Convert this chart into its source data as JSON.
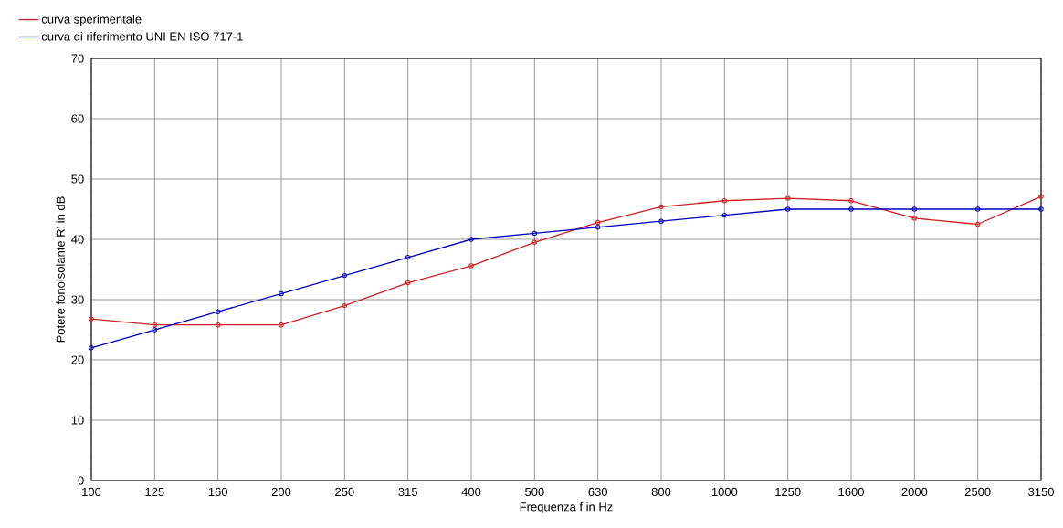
{
  "chart_data": {
    "type": "line",
    "xlabel": "Frequenza f in Hz",
    "ylabel": "Potere fonoisolante R' in dB",
    "categories": [
      "100",
      "125",
      "160",
      "200",
      "250",
      "315",
      "400",
      "500",
      "630",
      "800",
      "1000",
      "1250",
      "1600",
      "2000",
      "2500",
      "3150"
    ],
    "series": [
      {
        "name": "curva sperimentale",
        "color": "#d02020",
        "values": [
          26.8,
          25.8,
          25.8,
          25.8,
          29,
          32.8,
          35.6,
          39.5,
          42.8,
          45.4,
          46.4,
          46.8,
          46.4,
          43.5,
          42.5,
          47.1
        ]
      },
      {
        "name": "curva di riferimento UNI EN ISO 717-1",
        "color": "#0000c0",
        "values": [
          22,
          25,
          28,
          31,
          34,
          37,
          40,
          41,
          42,
          43,
          44,
          45,
          45,
          45,
          45,
          45
        ]
      }
    ],
    "ylim": [
      0,
      70
    ],
    "yticks": [
      0,
      10,
      20,
      30,
      40,
      50,
      60,
      70
    ],
    "grid": true,
    "legend": "top left",
    "marker": "circle",
    "line_style": "solid"
  }
}
